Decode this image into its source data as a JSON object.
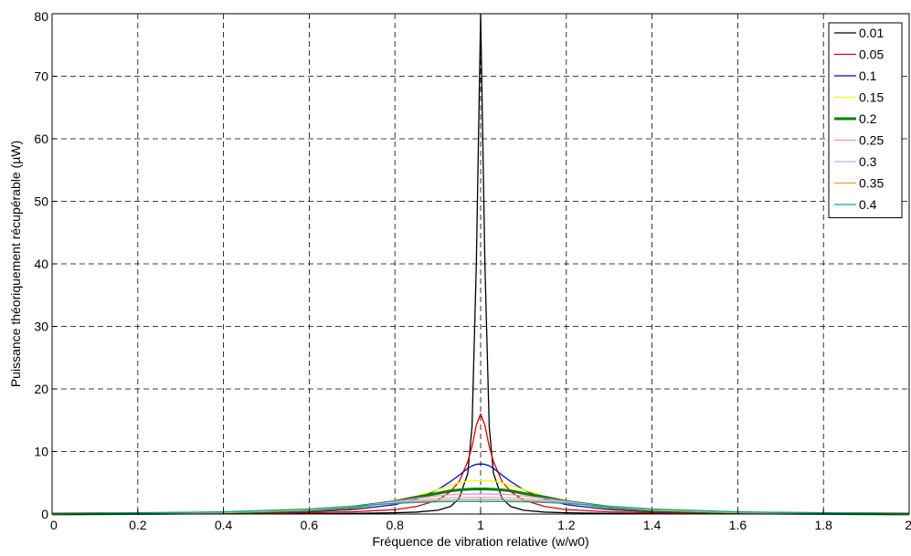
{
  "chart_data": {
    "type": "line",
    "title": "",
    "xlabel": "Fréquence de vibration relative (w/w0)",
    "ylabel": "Puissance théoriquement récupérable (µW)",
    "xlim": [
      0,
      2
    ],
    "ylim": [
      0,
      80
    ],
    "x_ticks": [
      "0",
      "0.2",
      "0.4",
      "0.6",
      "0.8",
      "1",
      "1.2",
      "1.4",
      "1.6",
      "1.8",
      "2"
    ],
    "y_ticks": [
      "0",
      "10",
      "20",
      "30",
      "40",
      "50",
      "60",
      "70",
      "80"
    ],
    "grid": true,
    "grid_style": "dashed",
    "legend_position": "top-right",
    "x": [
      0,
      0.2,
      0.4,
      0.6,
      0.7,
      0.8,
      0.85,
      0.9,
      0.93,
      0.95,
      0.97,
      0.98,
      0.99,
      1.0,
      1.01,
      1.02,
      1.03,
      1.05,
      1.07,
      1.1,
      1.15,
      1.2,
      1.3,
      1.4,
      1.6,
      1.8,
      2.0
    ],
    "series": [
      {
        "name": "0.01",
        "color": "#000000",
        "width": 1.3,
        "values": [
          0.0,
          0.01,
          0.03,
          0.06,
          0.1,
          0.2,
          0.3,
          0.6,
          1.2,
          2.5,
          6.5,
          14.0,
          40.0,
          80.0,
          40.0,
          14.0,
          6.5,
          2.5,
          1.2,
          0.6,
          0.3,
          0.2,
          0.1,
          0.06,
          0.03,
          0.01,
          0.0
        ]
      },
      {
        "name": "0.05",
        "color": "#dd0000",
        "width": 1.3,
        "values": [
          0.0,
          0.04,
          0.1,
          0.2,
          0.35,
          0.7,
          1.2,
          2.2,
          3.6,
          5.2,
          8.4,
          10.8,
          14.2,
          16.0,
          14.2,
          10.8,
          8.4,
          5.2,
          3.6,
          2.2,
          1.2,
          0.7,
          0.35,
          0.2,
          0.1,
          0.04,
          0.0
        ]
      },
      {
        "name": "0.1",
        "color": "#0000cc",
        "width": 1.3,
        "values": [
          0.0,
          0.05,
          0.15,
          0.35,
          0.7,
          1.5,
          2.4,
          3.9,
          5.2,
          6.2,
          7.3,
          7.7,
          7.95,
          8.0,
          7.95,
          7.7,
          7.3,
          6.2,
          5.2,
          3.9,
          2.4,
          1.5,
          0.7,
          0.35,
          0.15,
          0.05,
          0.0
        ]
      },
      {
        "name": "0.15",
        "color": "#ffff00",
        "width": 1.3,
        "values": [
          0.0,
          0.06,
          0.18,
          0.45,
          0.9,
          1.9,
          2.8,
          3.9,
          4.6,
          5.0,
          5.25,
          5.3,
          5.33,
          5.33,
          5.33,
          5.3,
          5.25,
          5.0,
          4.6,
          3.9,
          2.8,
          1.9,
          0.9,
          0.45,
          0.18,
          0.06,
          0.0
        ]
      },
      {
        "name": "0.2",
        "color": "#008000",
        "width": 3,
        "values": [
          0.0,
          0.07,
          0.2,
          0.55,
          1.1,
          2.0,
          2.7,
          3.3,
          3.7,
          3.85,
          3.95,
          3.98,
          4.0,
          4.0,
          4.0,
          3.98,
          3.95,
          3.85,
          3.7,
          3.3,
          2.7,
          2.0,
          1.1,
          0.55,
          0.2,
          0.07,
          0.0
        ]
      },
      {
        "name": "0.25",
        "color": "#ff88cc",
        "width": 1.3,
        "values": [
          0.0,
          0.08,
          0.22,
          0.6,
          1.15,
          2.0,
          2.5,
          2.9,
          3.1,
          3.15,
          3.18,
          3.2,
          3.2,
          3.2,
          3.2,
          3.2,
          3.18,
          3.15,
          3.1,
          2.9,
          2.5,
          2.0,
          1.15,
          0.6,
          0.22,
          0.08,
          0.0
        ]
      },
      {
        "name": "0.3",
        "color": "#aabbff",
        "width": 1.3,
        "values": [
          0.0,
          0.09,
          0.25,
          0.65,
          1.15,
          1.85,
          2.25,
          2.5,
          2.6,
          2.65,
          2.66,
          2.67,
          2.67,
          2.67,
          2.67,
          2.67,
          2.66,
          2.65,
          2.6,
          2.5,
          2.25,
          1.85,
          1.15,
          0.65,
          0.25,
          0.09,
          0.0
        ]
      },
      {
        "name": "0.35",
        "color": "#ff9933",
        "width": 1.3,
        "values": [
          0.0,
          0.1,
          0.28,
          0.7,
          1.15,
          1.75,
          2.0,
          2.2,
          2.25,
          2.28,
          2.29,
          2.29,
          2.29,
          2.29,
          2.29,
          2.29,
          2.29,
          2.28,
          2.25,
          2.2,
          2.0,
          1.75,
          1.15,
          0.7,
          0.28,
          0.1,
          0.0
        ]
      },
      {
        "name": "0.4",
        "color": "#00aaaa",
        "width": 1.3,
        "values": [
          0.0,
          0.12,
          0.35,
          0.8,
          1.25,
          1.7,
          1.85,
          1.95,
          1.98,
          2.0,
          2.0,
          2.0,
          2.0,
          2.0,
          2.0,
          2.0,
          2.0,
          2.0,
          1.98,
          1.95,
          1.85,
          1.7,
          1.25,
          0.8,
          0.35,
          0.12,
          0.0
        ]
      }
    ]
  }
}
